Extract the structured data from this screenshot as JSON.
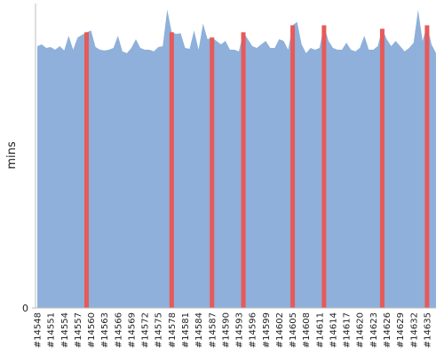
{
  "chart_data": {
    "type": "area",
    "y_label": "mins",
    "categories": [
      "#14548",
      null,
      null,
      "#14551",
      null,
      null,
      "#14554",
      null,
      null,
      "#14557",
      null,
      null,
      "#14560",
      null,
      null,
      "#14563",
      null,
      null,
      "#14566",
      null,
      null,
      "#14569",
      null,
      null,
      "#14572",
      null,
      null,
      "#14575",
      null,
      null,
      "#14578",
      null,
      null,
      "#14581",
      null,
      null,
      "#14584",
      null,
      null,
      "#14587",
      null,
      null,
      "#14590",
      null,
      null,
      "#14593",
      null,
      null,
      "#14596",
      null,
      null,
      "#14599",
      null,
      null,
      "#14602",
      null,
      null,
      "#14605",
      null,
      null,
      "#14608",
      null,
      null,
      "#14611",
      null,
      null,
      "#14614",
      null,
      null,
      "#14617",
      null,
      null,
      "#14620",
      null,
      null,
      "#14623",
      null,
      null,
      "#14626",
      null,
      null,
      "#14629",
      null,
      null,
      "#14632",
      null,
      null,
      "#14635",
      null,
      null
    ],
    "series": [
      {
        "color": "#8eb0da",
        "values": [
          30.1,
          30.3,
          29.9,
          30,
          29.7,
          30.1,
          29.6,
          31.3,
          29.7,
          31.1,
          31.4,
          31.7,
          31.9,
          30,
          29.7,
          29.6,
          29.7,
          29.9,
          31.3,
          29.5,
          29.3,
          29.9,
          30.9,
          29.9,
          29.7,
          29.7,
          29.5,
          30,
          30.1,
          34.3,
          31.7,
          31.5,
          31.6,
          29.9,
          29.8,
          31.9,
          29.7,
          32.7,
          30.9,
          31.1,
          30.7,
          30.3,
          30.7,
          29.7,
          29.7,
          29.5,
          31.7,
          30.9,
          30.1,
          29.9,
          30.3,
          30.7,
          29.9,
          29.9,
          30.9,
          30.7,
          29.7,
          32.5,
          32.9,
          30.3,
          29.3,
          29.9,
          29.7,
          29.9,
          32.5,
          30.7,
          29.9,
          29.7,
          29.7,
          30.5,
          29.7,
          29.5,
          29.9,
          31.3,
          29.7,
          29.7,
          30.1,
          32.1,
          30.9,
          30.1,
          30.7,
          30.1,
          29.5,
          29.9,
          30.5,
          34.3,
          30.7,
          32.5,
          30.3,
          29.3
        ]
      },
      {
        "color": "#e65a5a",
        "values": [
          null,
          null,
          null,
          null,
          null,
          null,
          null,
          null,
          null,
          null,
          null,
          31.7,
          null,
          null,
          null,
          null,
          null,
          null,
          null,
          null,
          null,
          null,
          null,
          null,
          null,
          null,
          null,
          null,
          null,
          null,
          31.7,
          null,
          null,
          null,
          null,
          null,
          null,
          null,
          null,
          31.1,
          null,
          null,
          null,
          null,
          null,
          null,
          31.7,
          null,
          null,
          null,
          null,
          null,
          null,
          null,
          null,
          null,
          null,
          32.5,
          null,
          null,
          null,
          null,
          null,
          null,
          32.5,
          null,
          null,
          null,
          null,
          null,
          null,
          null,
          null,
          null,
          null,
          null,
          null,
          32.1,
          null,
          null,
          null,
          null,
          null,
          null,
          null,
          null,
          null,
          32.5,
          null,
          null
        ]
      }
    ],
    "ylim": [
      0,
      35
    ],
    "yticks": [
      0
    ]
  }
}
